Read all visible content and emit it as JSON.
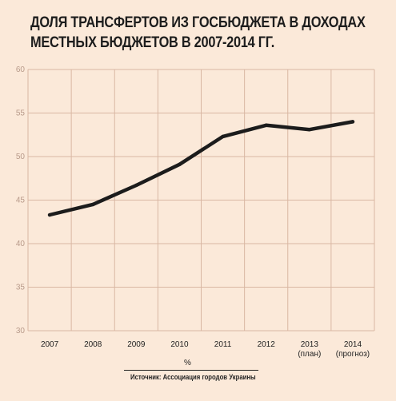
{
  "chart_data": {
    "type": "line",
    "title_lines": [
      "ДОЛЯ ТРАНСФЕРТОВ ИЗ ГОСБЮДЖЕТА В ДОХОДАХ",
      "МЕСТНЫХ БЮДЖЕТОВ В 2007-2014 ГГ."
    ],
    "categories": [
      {
        "label": "2007",
        "sub": ""
      },
      {
        "label": "2008",
        "sub": ""
      },
      {
        "label": "2009",
        "sub": ""
      },
      {
        "label": "2010",
        "sub": ""
      },
      {
        "label": "2011",
        "sub": ""
      },
      {
        "label": "2012",
        "sub": ""
      },
      {
        "label": "2013",
        "sub": "(план)"
      },
      {
        "label": "2014",
        "sub": "(прогноз)"
      }
    ],
    "series": [
      {
        "values": [
          43.3,
          44.5,
          46.7,
          49.1,
          52.3,
          53.6,
          53.1,
          54.0
        ]
      }
    ],
    "ylim": [
      30,
      60
    ],
    "yticks": [
      30,
      35,
      40,
      45,
      50,
      55,
      60
    ],
    "grid": true,
    "unit_label": "%",
    "source": "Источник: Ассоциация городов Украины",
    "colors": {
      "background": "#fbe9d9",
      "grid": "#d9b7a3",
      "line": "#1c1c1c",
      "tick_label": "#b89a8a"
    }
  }
}
